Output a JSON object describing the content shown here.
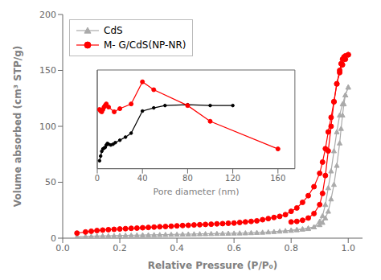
{
  "chart_data": [
    {
      "type": "line",
      "xlabel": "Relative Pressure (P/P₀)",
      "ylabel": "Volume absorbed (cm³ STP/g)",
      "xlim": [
        0.0,
        1.05
      ],
      "ylim": [
        0,
        200
      ],
      "xticks": [
        {
          "value": 0.0,
          "label": "0.0"
        },
        0.2,
        0.4,
        0.6,
        0.8,
        {
          "value": 1.0,
          "label": "1.0"
        }
      ],
      "yticks": [
        0,
        50,
        100,
        150,
        200
      ],
      "grid": false,
      "legend": "upper left",
      "series": [
        {
          "name": "CdS",
          "color": "#aaaaaa",
          "marker": "triangle",
          "x": [
            0.05,
            0.08,
            0.1,
            0.12,
            0.14,
            0.16,
            0.18,
            0.2,
            0.22,
            0.24,
            0.26,
            0.28,
            0.3,
            0.32,
            0.34,
            0.36,
            0.38,
            0.4,
            0.42,
            0.44,
            0.46,
            0.48,
            0.5,
            0.52,
            0.54,
            0.56,
            0.58,
            0.6,
            0.62,
            0.64,
            0.66,
            0.68,
            0.7,
            0.72,
            0.74,
            0.76,
            0.78,
            0.8,
            0.82,
            0.84,
            0.86,
            0.88,
            0.9,
            0.91,
            0.92,
            0.93,
            0.94,
            0.95,
            0.96,
            0.97,
            0.975,
            0.98,
            0.985,
            0.99,
            1.0
          ],
          "values": [
            1.2,
            1.5,
            1.7,
            1.9,
            2.0,
            2.1,
            2.2,
            2.4,
            2.5,
            2.6,
            2.7,
            2.8,
            2.9,
            3.0,
            3.1,
            3.2,
            3.3,
            3.4,
            3.5,
            3.6,
            3.7,
            3.8,
            3.9,
            4.0,
            4.1,
            4.2,
            4.3,
            4.4,
            4.5,
            4.6,
            4.8,
            5.0,
            5.2,
            5.5,
            5.8,
            6.2,
            6.6,
            7.0,
            7.5,
            8.2,
            9.0,
            10.0,
            12.0,
            14.0,
            18.0,
            24.0,
            35.0,
            48.0,
            65.0,
            85.0,
            98.0,
            110.0,
            120.0,
            128.0,
            135.0
          ]
        },
        {
          "name": "CdS",
          "color": "#aaaaaa",
          "marker": "triangle",
          "x": [
            1.0,
            0.99,
            0.98,
            0.97,
            0.96,
            0.95,
            0.94,
            0.93,
            0.92,
            0.91,
            0.9,
            0.88,
            0.86,
            0.84,
            0.82,
            0.8
          ],
          "values": [
            135.0,
            128.0,
            120.0,
            110.0,
            95.0,
            78.0,
            60.0,
            45.0,
            30.0,
            20.0,
            15.0,
            10.0,
            8.5,
            8.0,
            7.5,
            7.0
          ]
        },
        {
          "name": "M- G/CdS(NP-NR)",
          "color": "red",
          "marker": "circle",
          "x": [
            0.05,
            0.08,
            0.1,
            0.12,
            0.14,
            0.16,
            0.18,
            0.2,
            0.22,
            0.24,
            0.26,
            0.28,
            0.3,
            0.32,
            0.34,
            0.36,
            0.38,
            0.4,
            0.42,
            0.44,
            0.46,
            0.48,
            0.5,
            0.52,
            0.54,
            0.56,
            0.58,
            0.6,
            0.62,
            0.64,
            0.66,
            0.68,
            0.7,
            0.72,
            0.74,
            0.76,
            0.78,
            0.8,
            0.82,
            0.84,
            0.86,
            0.88,
            0.9,
            0.91,
            0.92,
            0.93,
            0.94,
            0.95,
            0.96,
            0.97,
            0.975,
            0.98,
            0.985,
            0.99,
            1.0
          ],
          "values": [
            4.5,
            5.5,
            6.2,
            6.8,
            7.2,
            7.6,
            7.9,
            8.2,
            8.5,
            8.8,
            9.0,
            9.3,
            9.6,
            9.9,
            10.2,
            10.4,
            10.7,
            11.0,
            11.3,
            11.5,
            11.8,
            12.0,
            12.3,
            12.5,
            12.8,
            13.0,
            13.3,
            13.5,
            14.0,
            14.5,
            15.0,
            15.5,
            16.5,
            17.5,
            18.5,
            19.5,
            21.0,
            24.0,
            27.0,
            32.0,
            38.0,
            46.0,
            58.0,
            68.0,
            80.0,
            95.0,
            108.0,
            122.0,
            138.0,
            150.0,
            156.0,
            160.0,
            162.0,
            163.0,
            164.0
          ]
        },
        {
          "name": "M- G/CdS(NP-NR)",
          "color": "red",
          "marker": "circle",
          "x": [
            1.0,
            0.99,
            0.98,
            0.97,
            0.96,
            0.95,
            0.94,
            0.93,
            0.92,
            0.91,
            0.9,
            0.88,
            0.86,
            0.84,
            0.82,
            0.8
          ],
          "values": [
            164.0,
            160.0,
            155.0,
            148.0,
            138.0,
            122.0,
            100.0,
            78.0,
            56.0,
            40.0,
            30.0,
            22.0,
            18.0,
            16.0,
            15.0,
            14.5
          ]
        }
      ]
    },
    {
      "type": "line",
      "xlabel": "Pore diameter (nm)",
      "xlim": [
        0,
        175
      ],
      "ylim": [
        40,
        165
      ],
      "xticks": [
        0,
        40,
        80,
        120,
        160
      ],
      "tick_labels": "x",
      "grid": false,
      "series": [
        {
          "color": "black",
          "marker": "point",
          "x": [
            2,
            3,
            4,
            5,
            6,
            7,
            8,
            9,
            10,
            12,
            14,
            16,
            20,
            25,
            30,
            40,
            50,
            60,
            80,
            100,
            120
          ],
          "values": [
            50,
            56,
            62,
            65,
            66,
            67,
            70,
            72,
            71,
            70,
            71,
            73,
            76,
            80,
            85,
            113,
            117,
            120,
            121,
            120,
            120
          ]
        },
        {
          "color": "red",
          "marker": "circle",
          "x": [
            2,
            3,
            4,
            5,
            6,
            7,
            8,
            10,
            15,
            20,
            30,
            40,
            50,
            80,
            100,
            160
          ],
          "values": [
            115,
            113,
            112,
            115,
            118,
            120,
            122,
            118,
            112,
            116,
            122,
            150,
            140,
            120,
            100,
            65
          ]
        }
      ]
    }
  ]
}
